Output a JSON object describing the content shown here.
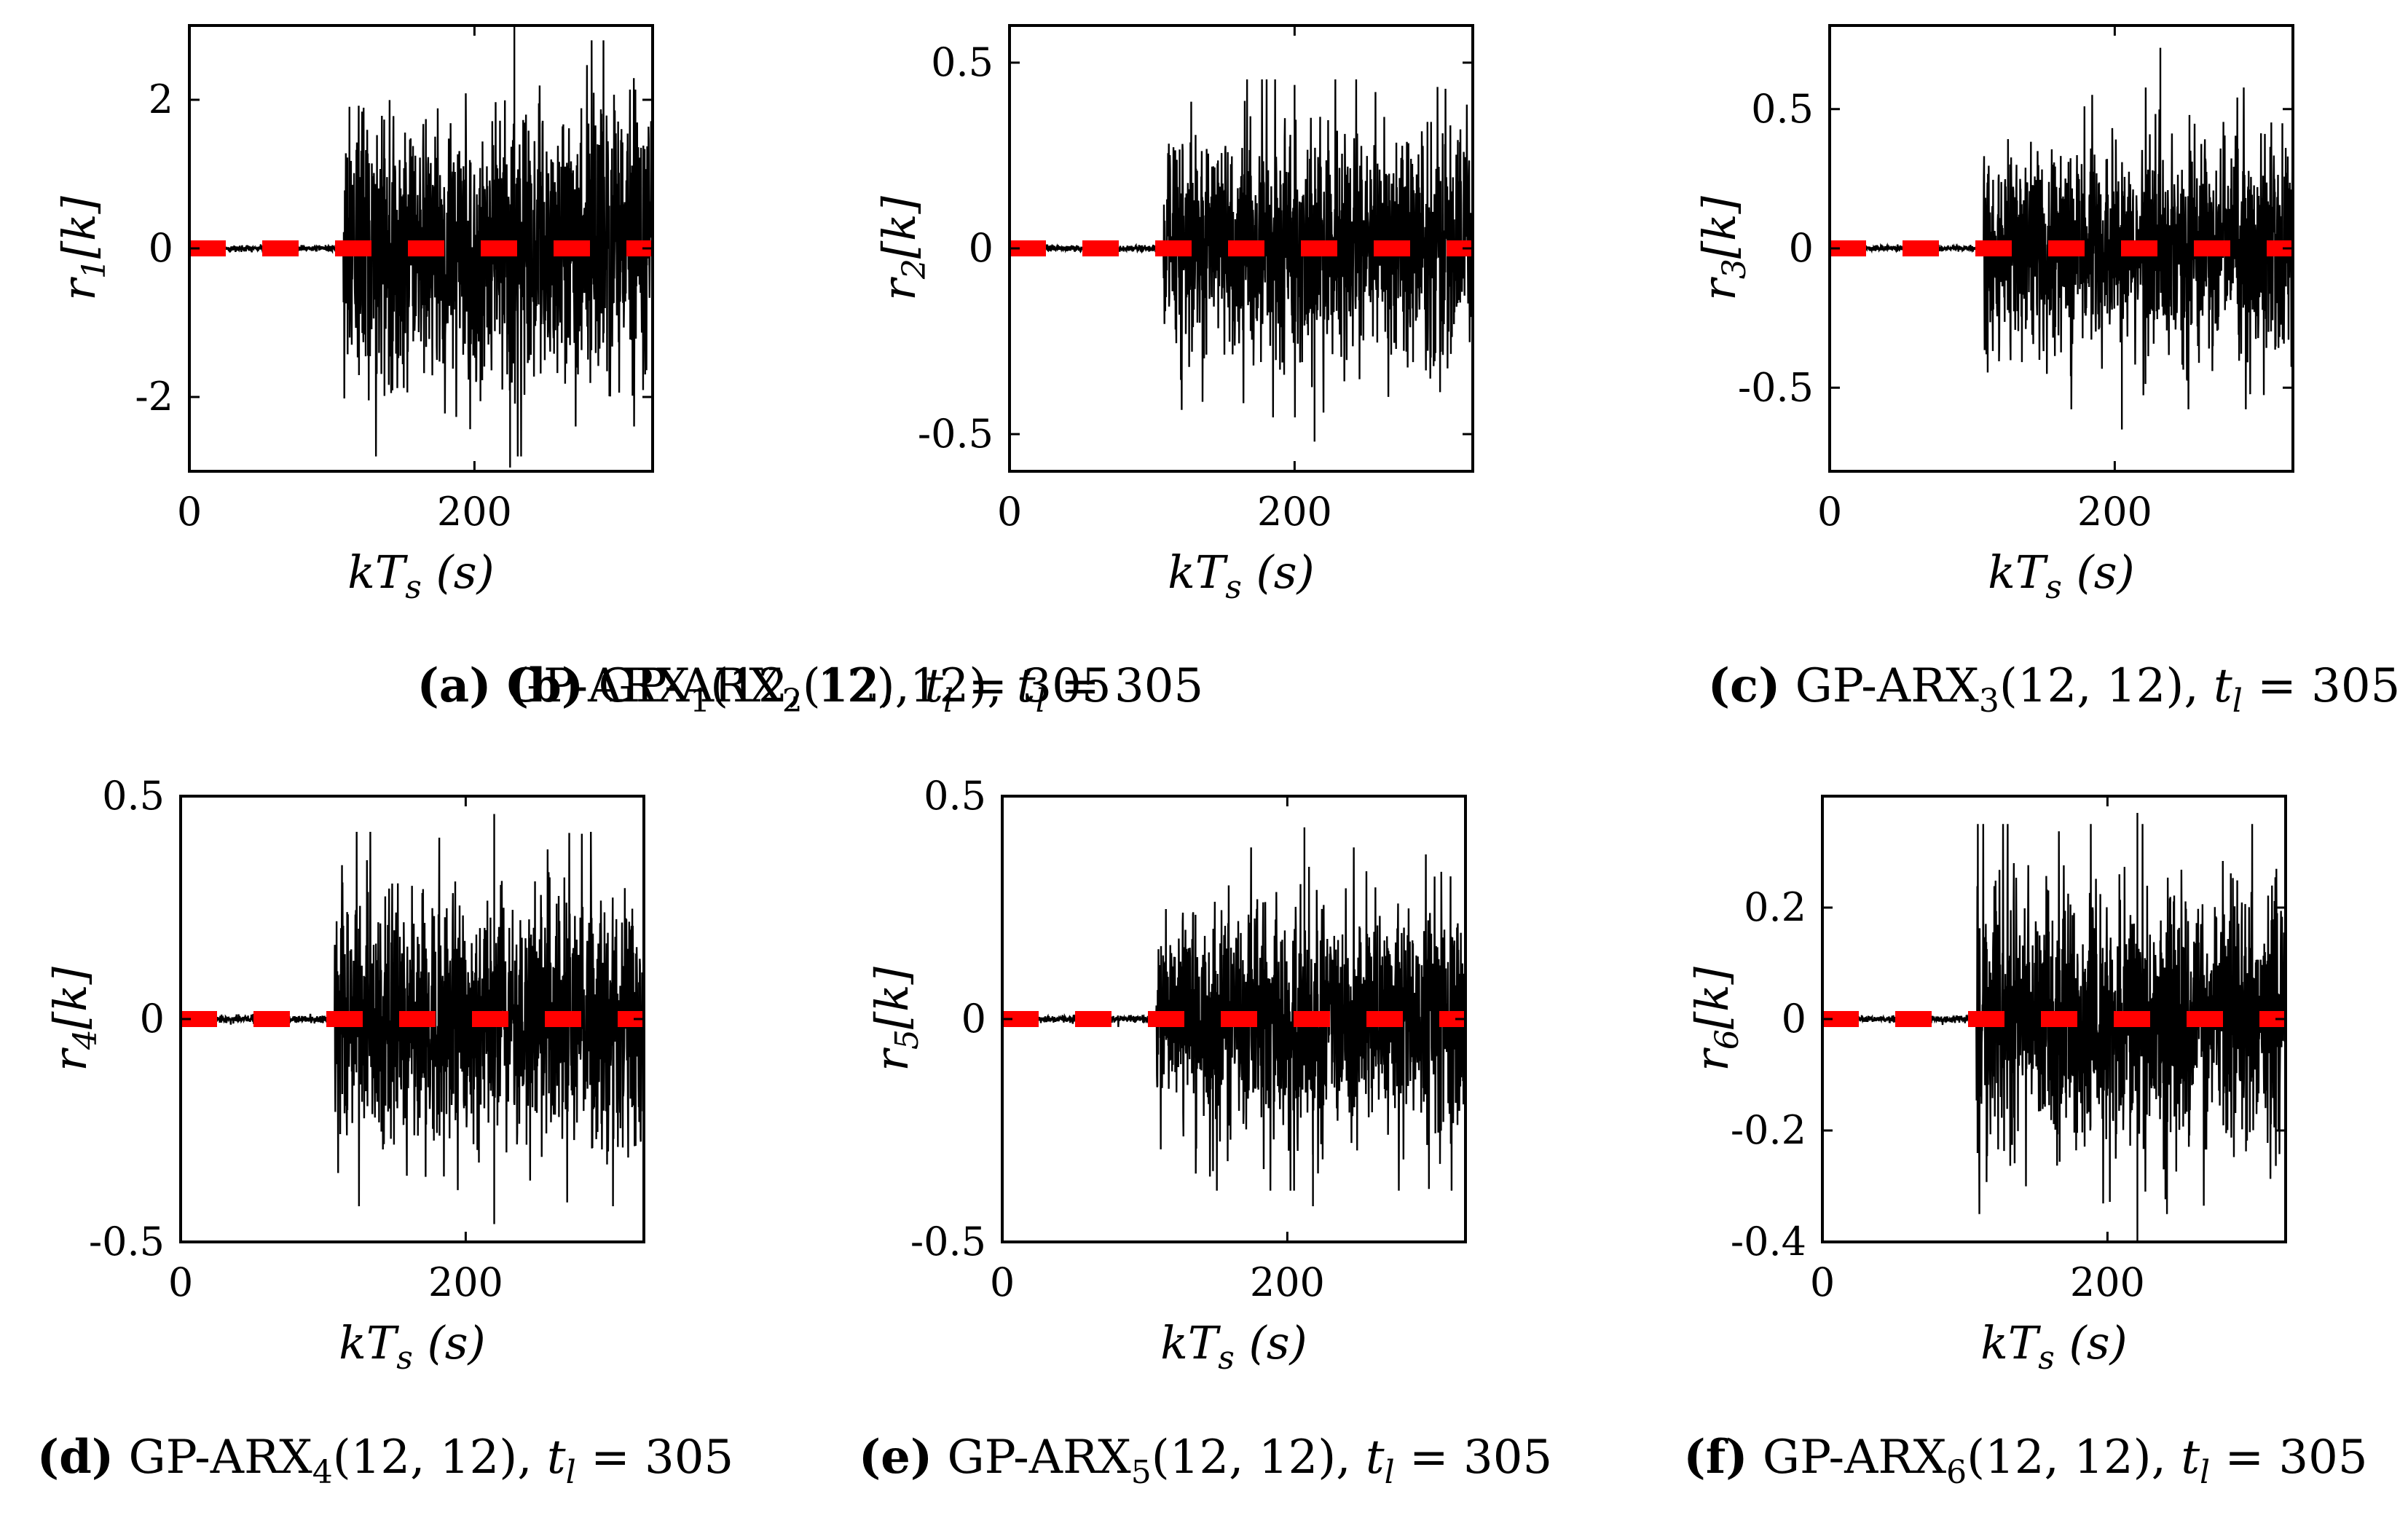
{
  "figure": {
    "background": "#ffffff",
    "signal_color": "#000000",
    "threshold_color": "#ff0000"
  },
  "chart_data": [
    {
      "type": "line",
      "caption": {
        "letter": "(a)",
        "text": "GP-ARX",
        "sub": "1",
        "args": "(12, 12), ",
        "t": "t",
        "tsub": "l",
        "rest": " = 305"
      },
      "ylabel": {
        "base": "r",
        "sub": "1",
        "rest": "[k]"
      },
      "xlabel": {
        "base": "kT",
        "sub": "s",
        "rest": " (s)"
      },
      "xlim": [
        0,
        325
      ],
      "ylim": [
        -3,
        3
      ],
      "xticks": [
        0,
        200
      ],
      "xtick_labels": [
        "0",
        "200"
      ],
      "yticks": [
        -2,
        0,
        2
      ],
      "ytick_labels": [
        "-2",
        "0",
        "2"
      ],
      "fault_onset": 108,
      "series": [
        {
          "name": "residual",
          "noise_amp": 1.6,
          "quiet_amp": 0.02,
          "peaks": [
            [
              228,
              3.0
            ],
            [
              225,
              -2.95
            ]
          ]
        },
        {
          "name": "threshold",
          "value": 0
        }
      ]
    },
    {
      "type": "line",
      "caption": {
        "letter": "(b)",
        "text": "GP-ARX",
        "sub": "2",
        "args": "(12, 12), ",
        "t": "t",
        "tsub": "l",
        "rest": " = 305"
      },
      "ylabel": {
        "base": "r",
        "sub": "2",
        "rest": "[k]"
      },
      "xlabel": {
        "base": "kT",
        "sub": "s",
        "rest": " (s)"
      },
      "xlim": [
        0,
        325
      ],
      "ylim": [
        -0.6,
        0.6
      ],
      "xticks": [
        0,
        200
      ],
      "xtick_labels": [
        "0",
        "200"
      ],
      "yticks": [
        -0.5,
        0,
        0.5
      ],
      "ytick_labels": [
        "-0.5",
        "0",
        "0.5"
      ],
      "fault_onset": 108,
      "series": [
        {
          "name": "residual",
          "noise_amp": 0.26,
          "quiet_amp": 0.004,
          "peaks": [
            [
              200,
              0.44
            ],
            [
              214,
              -0.52
            ]
          ]
        },
        {
          "name": "threshold",
          "value": 0
        }
      ]
    },
    {
      "type": "line",
      "caption": {
        "letter": "(c)",
        "text": "GP-ARX",
        "sub": "3",
        "args": "(12, 12), ",
        "t": "t",
        "tsub": "l",
        "rest": " = 305"
      },
      "ylabel": {
        "base": "r",
        "sub": "3",
        "rest": "[k]"
      },
      "xlabel": {
        "base": "kT",
        "sub": "s",
        "rest": " (s)"
      },
      "xlim": [
        0,
        325
      ],
      "ylim": [
        -0.8,
        0.8
      ],
      "xticks": [
        0,
        200
      ],
      "xtick_labels": [
        "0",
        "200"
      ],
      "yticks": [
        -0.5,
        0,
        0.5
      ],
      "ytick_labels": [
        "-0.5",
        "0",
        "0.5"
      ],
      "fault_onset": 108,
      "series": [
        {
          "name": "residual",
          "noise_amp": 0.33,
          "quiet_amp": 0.005,
          "peaks": [
            [
              232,
              0.72
            ],
            [
              205,
              -0.65
            ]
          ]
        },
        {
          "name": "threshold",
          "value": 0
        }
      ]
    },
    {
      "type": "line",
      "caption": {
        "letter": "(d)",
        "text": "GP-ARX",
        "sub": "4",
        "args": "(12, 12), ",
        "t": "t",
        "tsub": "l",
        "rest": " = 305"
      },
      "ylabel": {
        "base": "r",
        "sub": "4",
        "rest": "[k]"
      },
      "xlabel": {
        "base": "kT",
        "sub": "s",
        "rest": " (s)"
      },
      "xlim": [
        0,
        325
      ],
      "ylim": [
        -0.5,
        0.5
      ],
      "xticks": [
        0,
        200
      ],
      "xtick_labels": [
        "0",
        "200"
      ],
      "yticks": [
        -0.5,
        0,
        0.5
      ],
      "ytick_labels": [
        "-0.5",
        "0",
        "0.5"
      ],
      "fault_onset": 108,
      "series": [
        {
          "name": "residual",
          "noise_amp": 0.24,
          "quiet_amp": 0.004,
          "peaks": [
            [
              220,
              0.46
            ],
            [
              220,
              -0.46
            ]
          ]
        },
        {
          "name": "threshold",
          "value": 0
        }
      ]
    },
    {
      "type": "line",
      "caption": {
        "letter": "(e)",
        "text": "GP-ARX",
        "sub": "5",
        "args": "(12, 12), ",
        "t": "t",
        "tsub": "l",
        "rest": " = 305"
      },
      "ylabel": {
        "base": "r",
        "sub": "5",
        "rest": "[k]"
      },
      "xlabel": {
        "base": "kT",
        "sub": "s",
        "rest": " (s)"
      },
      "xlim": [
        0,
        325
      ],
      "ylim": [
        -0.5,
        0.5
      ],
      "xticks": [
        0,
        200
      ],
      "xtick_labels": [
        "0",
        "200"
      ],
      "yticks": [
        -0.5,
        0,
        0.5
      ],
      "ytick_labels": [
        "-0.5",
        "0",
        "0.5"
      ],
      "fault_onset": 108,
      "series": [
        {
          "name": "residual",
          "noise_amp": 0.22,
          "quiet_amp": 0.004,
          "peaks": [
            [
              212,
              0.43
            ],
            [
              218,
              -0.42
            ]
          ]
        },
        {
          "name": "threshold",
          "value": 0
        }
      ]
    },
    {
      "type": "line",
      "caption": {
        "letter": "(f)",
        "text": "GP-ARX",
        "sub": "6",
        "args": "(12, 12), ",
        "t": "t",
        "tsub": "l",
        "rest": " = 305"
      },
      "ylabel": {
        "base": "r",
        "sub": "6",
        "rest": "[k]"
      },
      "xlabel": {
        "base": "kT",
        "sub": "s",
        "rest": " (s)"
      },
      "xlim": [
        0,
        325
      ],
      "ylim": [
        -0.4,
        0.4
      ],
      "xticks": [
        0,
        200
      ],
      "xtick_labels": [
        "0",
        "200"
      ],
      "yticks": [
        -0.4,
        -0.2,
        0,
        0.2
      ],
      "ytick_labels": [
        "-0.4",
        "-0.2",
        "0",
        "0.2"
      ],
      "fault_onset": 108,
      "series": [
        {
          "name": "residual",
          "noise_amp": 0.2,
          "quiet_amp": 0.003,
          "peaks": [
            [
              221,
              0.37
            ],
            [
              221,
              -0.4
            ]
          ]
        },
        {
          "name": "threshold",
          "value": 0
        }
      ]
    }
  ]
}
